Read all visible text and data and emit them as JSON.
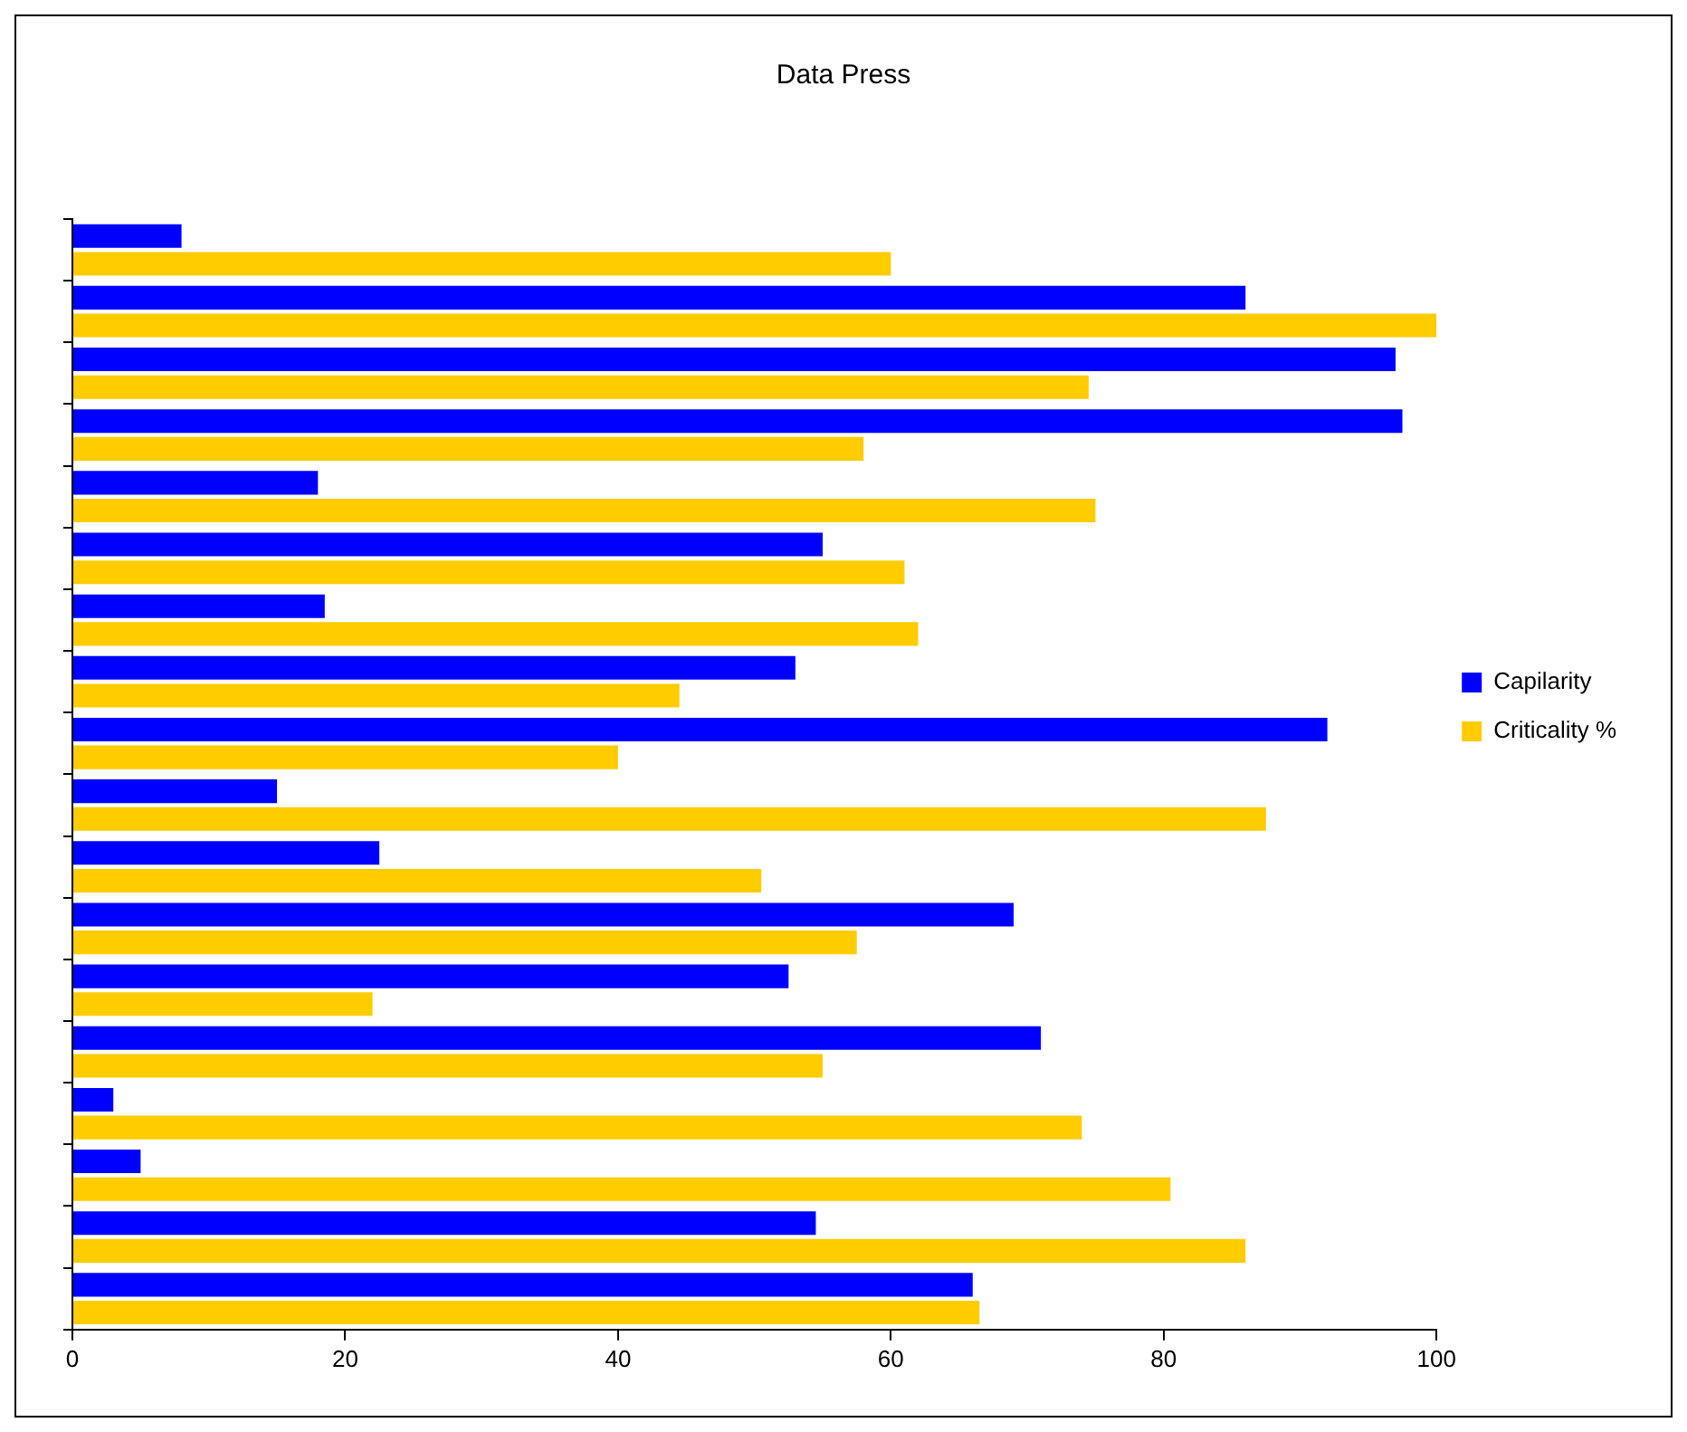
{
  "chart_data": {
    "type": "bar",
    "title": "Data Press",
    "orientation": "horizontal",
    "legend": "right",
    "categories": [
      null,
      null,
      null,
      null,
      null,
      null,
      null,
      null,
      null,
      null,
      null,
      null,
      null,
      null,
      null,
      null,
      null,
      null
    ],
    "series": [
      {
        "name": "Capilarity",
        "color": "#0000ff",
        "values": [
          8,
          86,
          97,
          97.5,
          18,
          55,
          18.5,
          53,
          92,
          15,
          22.5,
          69,
          52.5,
          71,
          3,
          5,
          54.5,
          66
        ]
      },
      {
        "name": "Criticality %",
        "color": "#ffcc00",
        "values": [
          60,
          100,
          74.5,
          58,
          75,
          61,
          62,
          44.5,
          40,
          87.5,
          50.5,
          57.5,
          22,
          55,
          74,
          80.5,
          86,
          66.5
        ]
      }
    ],
    "xlim": [
      0,
      100
    ],
    "xticks": [
      0,
      20,
      40,
      60,
      80,
      100
    ]
  }
}
